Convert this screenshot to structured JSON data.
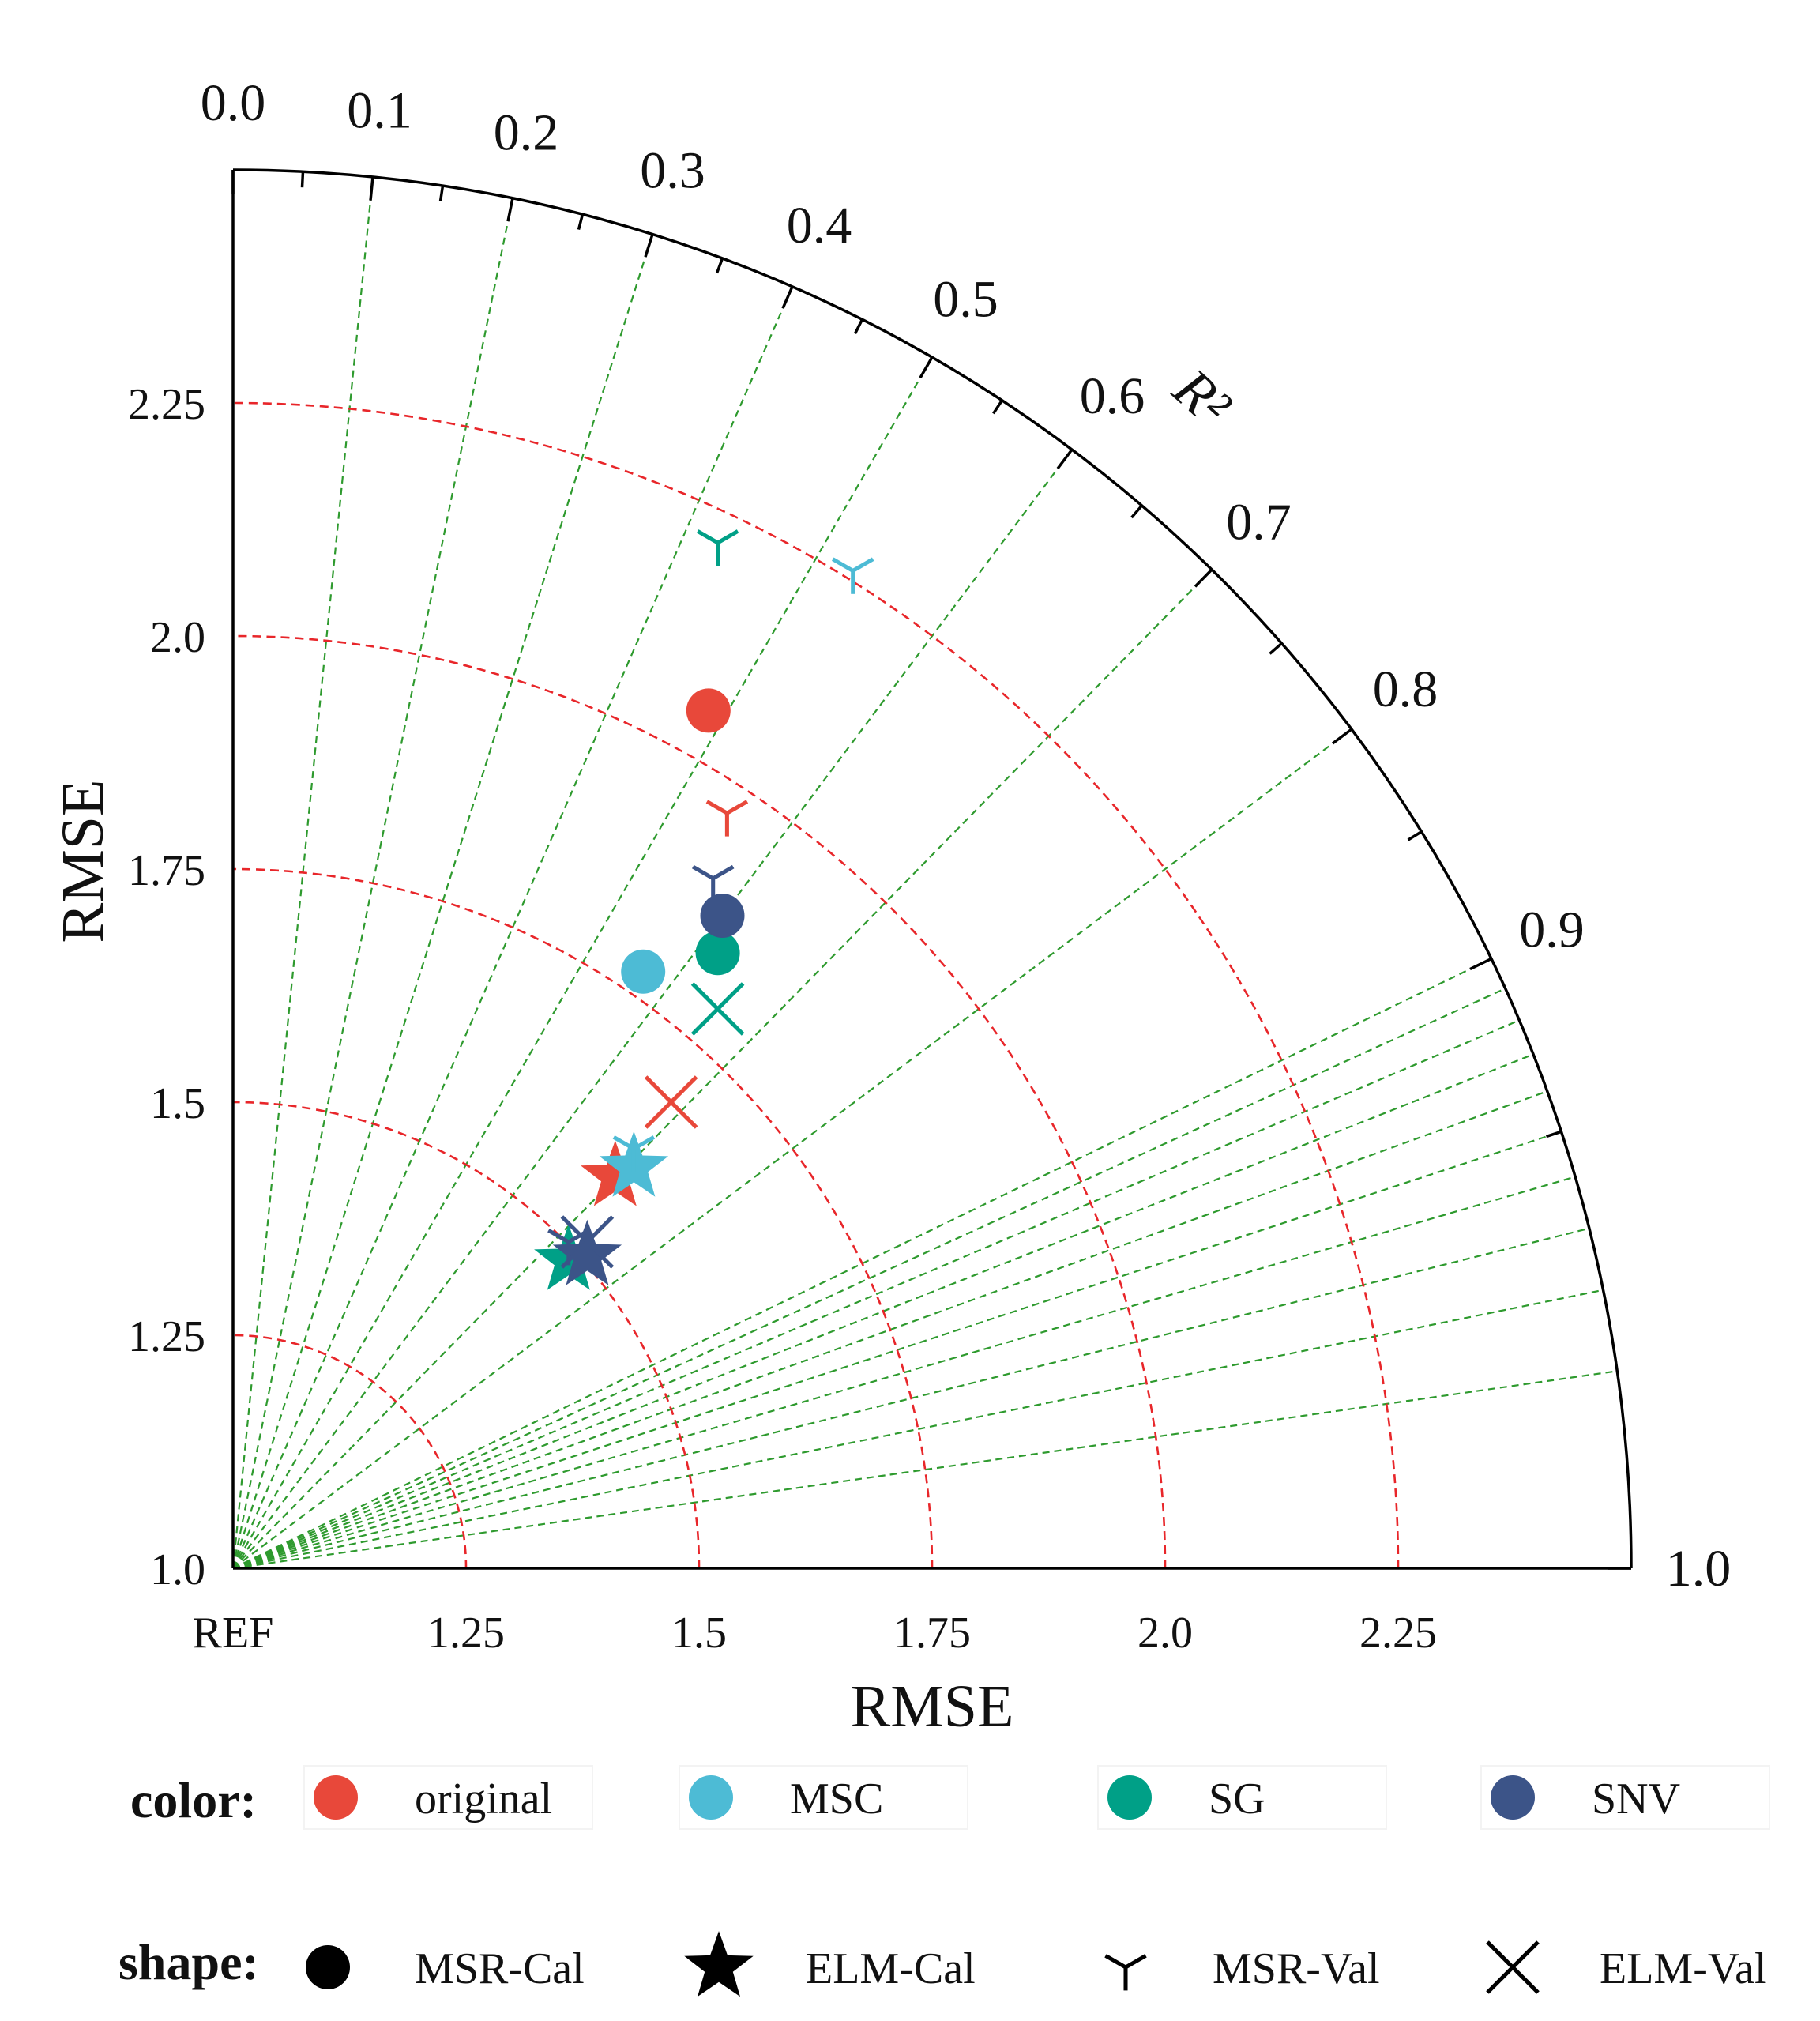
{
  "chart_data": {
    "type": "taylor-diagram",
    "title": "",
    "angular_axis": {
      "label": "R²",
      "ticks": [
        "0.0",
        "0.1",
        "0.2",
        "0.3",
        "0.4",
        "0.5",
        "0.6",
        "0.7",
        "0.8",
        "0.9",
        "1.0"
      ],
      "tick_values": [
        0.0,
        0.1,
        0.2,
        0.3,
        0.4,
        0.5,
        0.6,
        0.7,
        0.8,
        0.9,
        1.0
      ]
    },
    "radial_axis": {
      "ylabel": "RMSE",
      "xlabel": "RMSE",
      "range": [
        1.0,
        2.5
      ],
      "y_ticks": [
        "1.0",
        "1.25",
        "1.5",
        "1.75",
        "2.0",
        "2.25"
      ],
      "y_tick_values": [
        1.0,
        1.25,
        1.5,
        1.75,
        2.0,
        2.25
      ],
      "x_ticks": [
        "REF",
        "1.25",
        "1.5",
        "1.75",
        "2.0",
        "2.25"
      ],
      "x_tick_values": [
        1.0,
        1.25,
        1.5,
        1.75,
        2.0,
        2.25
      ]
    },
    "rmse_arcs": [
      1.25,
      1.5,
      1.75,
      2.0,
      2.25
    ],
    "color_legend": {
      "title": "color:",
      "items": [
        {
          "name": "original",
          "color": "#e8483a"
        },
        {
          "name": "MSC",
          "color": "#4dbbd5"
        },
        {
          "name": "SG",
          "color": "#00a087"
        },
        {
          "name": "SNV",
          "color": "#3c5488"
        }
      ]
    },
    "shape_legend": {
      "title": "shape:",
      "items": [
        {
          "name": "MSR-Cal",
          "shape": "circle"
        },
        {
          "name": "ELM-Cal",
          "shape": "star"
        },
        {
          "name": "MSR-Val",
          "shape": "tri"
        },
        {
          "name": "ELM-Val",
          "shape": "x"
        }
      ]
    },
    "points": [
      {
        "series": "original",
        "model": "MSR-Cal",
        "x": 1.51,
        "y": 1.92
      },
      {
        "series": "MSC",
        "model": "MSR-Cal",
        "x": 1.44,
        "y": 1.64
      },
      {
        "series": "SG",
        "model": "MSR-Cal",
        "x": 1.52,
        "y": 1.66
      },
      {
        "series": "SNV",
        "model": "MSR-Cal",
        "x": 1.525,
        "y": 1.7
      },
      {
        "series": "original",
        "model": "ELM-Cal",
        "x": 1.41,
        "y": 1.42
      },
      {
        "series": "MSC",
        "model": "ELM-Cal",
        "x": 1.43,
        "y": 1.43
      },
      {
        "series": "SG",
        "model": "ELM-Cal",
        "x": 1.36,
        "y": 1.33
      },
      {
        "series": "SNV",
        "model": "ELM-Cal",
        "x": 1.38,
        "y": 1.335
      },
      {
        "series": "SG",
        "model": "MSR-Val",
        "x": 1.52,
        "y": 2.1
      },
      {
        "series": "MSC",
        "model": "MSR-Val",
        "x": 1.665,
        "y": 2.07
      },
      {
        "series": "original",
        "model": "MSR-Val",
        "x": 1.53,
        "y": 1.81
      },
      {
        "series": "SNV",
        "model": "MSR-Val",
        "x": 1.515,
        "y": 1.74
      },
      {
        "series": "MSC",
        "model": "MSR-Val",
        "x": 1.43,
        "y": 1.45
      },
      {
        "series": "SNV",
        "model": "MSR-Val",
        "x": 1.36,
        "y": 1.35
      },
      {
        "series": "SG",
        "model": "ELM-Val",
        "x": 1.52,
        "y": 1.6
      },
      {
        "series": "original",
        "model": "ELM-Val",
        "x": 1.47,
        "y": 1.5
      },
      {
        "series": "SNV",
        "model": "ELM-Val",
        "x": 1.38,
        "y": 1.35
      }
    ]
  }
}
